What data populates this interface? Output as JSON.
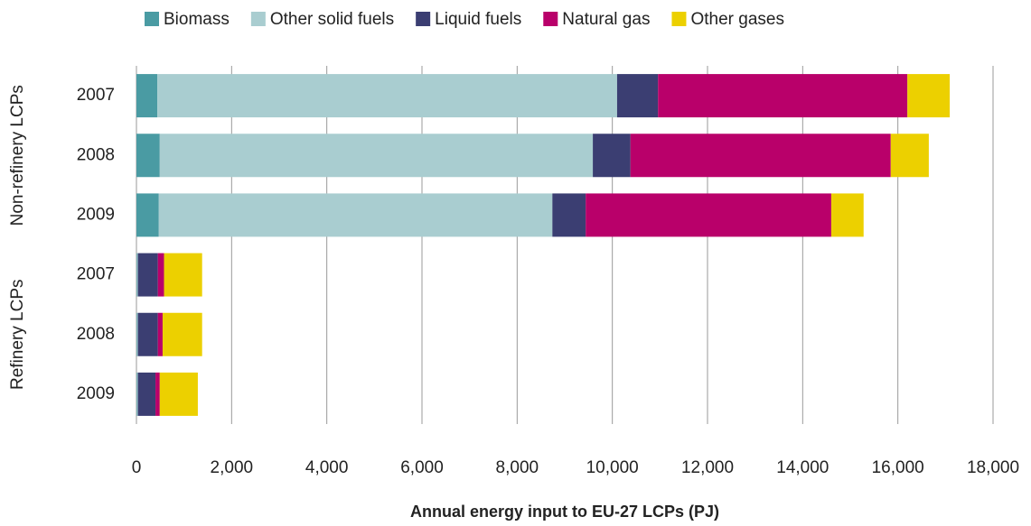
{
  "chart_data": {
    "type": "bar",
    "orientation": "horizontal",
    "stacked": true,
    "xlabel": "Annual energy input to EU-27 LCPs (PJ)",
    "groups": [
      {
        "name": "Non-refinery LCPs",
        "categories": [
          "2007",
          "2008",
          "2009"
        ]
      },
      {
        "name": "Refinery LCPs",
        "categories": [
          "2007",
          "2008",
          "2009"
        ]
      }
    ],
    "series": [
      {
        "name": "Biomass",
        "color": "#4a9ba3",
        "values": [
          440,
          490,
          470,
          10,
          10,
          10
        ]
      },
      {
        "name": "Other solid fuels",
        "color": "#a9cdd0",
        "values": [
          9660,
          9100,
          8270,
          20,
          20,
          20
        ]
      },
      {
        "name": "Liquid fuels",
        "color": "#3b3e72",
        "values": [
          860,
          790,
          700,
          420,
          420,
          370
        ]
      },
      {
        "name": "Natural gas",
        "color": "#b9006a",
        "values": [
          5240,
          5470,
          5160,
          130,
          100,
          90
        ]
      },
      {
        "name": "Other gases",
        "color": "#ecd000",
        "values": [
          890,
          800,
          680,
          800,
          830,
          800
        ]
      }
    ],
    "xlim": [
      0,
      18000
    ],
    "xticks": [
      0,
      {
        "value": 2000,
        "label": "2,000"
      },
      {
        "value": 4000,
        "label": "4,000"
      },
      {
        "value": 6000,
        "label": "6,000"
      },
      {
        "value": 8000,
        "label": "8,000"
      },
      {
        "value": 10000,
        "label": "10,000"
      },
      {
        "value": 12000,
        "label": "12,000"
      },
      {
        "value": 14000,
        "label": "14,000"
      },
      {
        "value": 16000,
        "label": "16,000"
      },
      {
        "value": 18000,
        "label": "18,000"
      }
    ],
    "grid": true,
    "legend": "top"
  }
}
